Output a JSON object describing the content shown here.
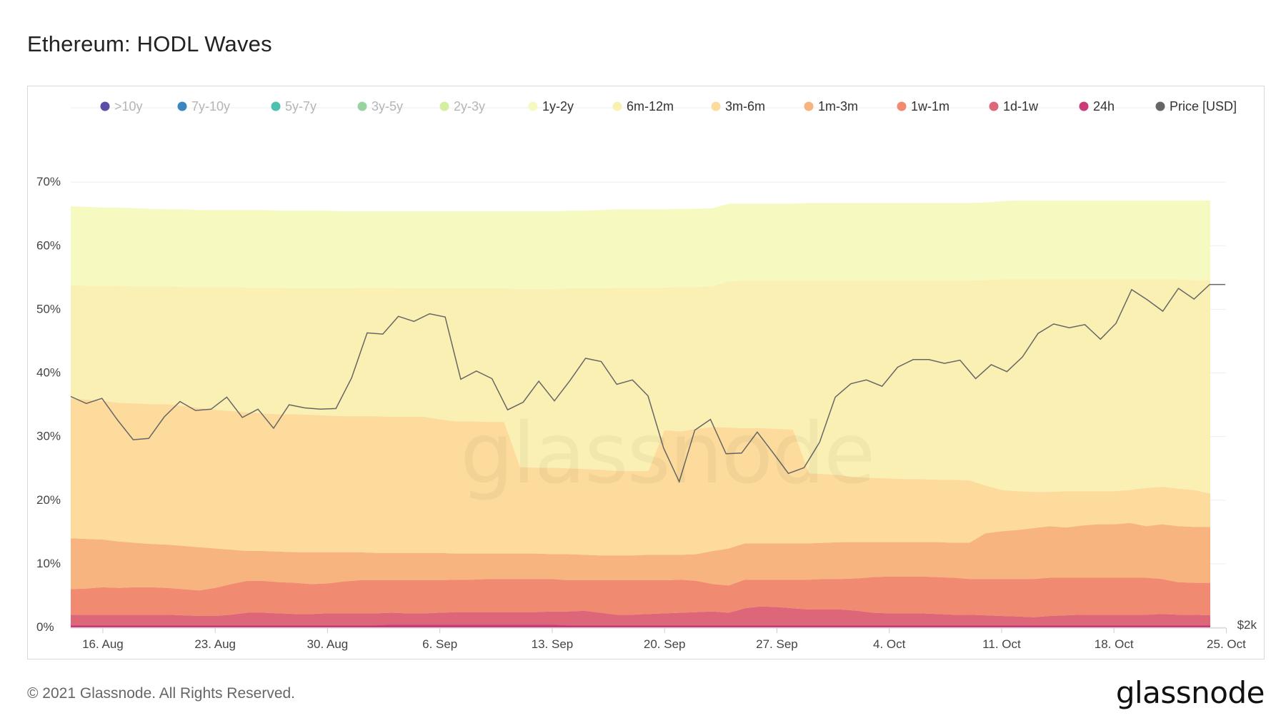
{
  "title": "Ethereum: HODL Waves",
  "footer": {
    "copyright": "© 2021 Glassnode. All Rights Reserved.",
    "logo": "glassnode",
    "watermark": "glassnode"
  },
  "colors": {
    "gt10y": "#5b4ea8",
    "y7_10": "#3a87c0",
    "y5_7": "#4dc0b0",
    "y3_5": "#97d4a0",
    "y2_3": "#d6eea0",
    "y1_2": "#f6f9c0",
    "m6_12": "#fbf0b3",
    "m3_6": "#fcdb9c",
    "m1_3": "#f8b47e",
    "w1_1m": "#f08a70",
    "d1_1w": "#dd6678",
    "h24": "#c93a78",
    "price": "#666666"
  },
  "chart_data": {
    "type": "area",
    "stacked": true,
    "title": "Ethereum: HODL Waves",
    "ylim": [
      0,
      80
    ],
    "y_ticks": [
      "0%",
      "10%",
      "20%",
      "30%",
      "40%",
      "50%",
      "60%",
      "70%"
    ],
    "right_axis_label": "$2k",
    "x_ticks": [
      "16. Aug",
      "23. Aug",
      "30. Aug",
      "6. Sep",
      "13. Sep",
      "20. Sep",
      "27. Sep",
      "4. Oct",
      "11. Oct",
      "18. Oct",
      "25. Oct"
    ],
    "legend_position": "top",
    "legend": [
      {
        "label": ">10y",
        "color_key": "gt10y",
        "active": false
      },
      {
        "label": "7y-10y",
        "color_key": "y7_10",
        "active": false
      },
      {
        "label": "5y-7y",
        "color_key": "y5_7",
        "active": false
      },
      {
        "label": "3y-5y",
        "color_key": "y3_5",
        "active": false
      },
      {
        "label": "2y-3y",
        "color_key": "y2_3",
        "active": false
      },
      {
        "label": "1y-2y",
        "color_key": "y1_2",
        "active": true
      },
      {
        "label": "6m-12m",
        "color_key": "m6_12",
        "active": true
      },
      {
        "label": "3m-6m",
        "color_key": "m3_6",
        "active": true
      },
      {
        "label": "1m-3m",
        "color_key": "m1_3",
        "active": true
      },
      {
        "label": "1w-1m",
        "color_key": "w1_1m",
        "active": true
      },
      {
        "label": "1d-1w",
        "color_key": "d1_1w",
        "active": true
      },
      {
        "label": "24h",
        "color_key": "h24",
        "active": true
      },
      {
        "label": "Price [USD]",
        "color_key": "price",
        "active": true
      }
    ],
    "x_start_tick_offset": 2,
    "series_boundaries_pct": [
      {
        "name": "24h",
        "color_key": "h24",
        "values": [
          0.3,
          0.3,
          0.3,
          0.3,
          0.3,
          0.3,
          0.3,
          0.3,
          0.3,
          0.3,
          0.3,
          0.3,
          0.3,
          0.3,
          0.3,
          0.3,
          0.3,
          0.3,
          0.3,
          0.3,
          0.4,
          0.4,
          0.4,
          0.4,
          0.4,
          0.4,
          0.4,
          0.4,
          0.4,
          0.4,
          0.4,
          0.3,
          0.3,
          0.3,
          0.3,
          0.3,
          0.3,
          0.3,
          0.3,
          0.3,
          0.3,
          0.3,
          0.3,
          0.3,
          0.3,
          0.3,
          0.3,
          0.3,
          0.3,
          0.3,
          0.3,
          0.3,
          0.3,
          0.3,
          0.3,
          0.3,
          0.3,
          0.3,
          0.3,
          0.3,
          0.3,
          0.3,
          0.3,
          0.3,
          0.3,
          0.3,
          0.3,
          0.3,
          0.3,
          0.3,
          0.3,
          0.3
        ]
      },
      {
        "name": "1d-1w",
        "color_key": "d1_1w",
        "values": [
          2.0,
          2.0,
          2.0,
          2.0,
          2.0,
          2.0,
          2.0,
          1.9,
          1.8,
          1.8,
          2.0,
          2.3,
          2.3,
          2.2,
          2.1,
          2.1,
          2.2,
          2.2,
          2.2,
          2.2,
          2.3,
          2.2,
          2.2,
          2.3,
          2.4,
          2.4,
          2.4,
          2.4,
          2.4,
          2.4,
          2.5,
          2.5,
          2.6,
          2.3,
          2.0,
          2.0,
          2.1,
          2.2,
          2.3,
          2.4,
          2.5,
          2.3,
          3.0,
          3.3,
          3.2,
          3.0,
          2.8,
          2.8,
          2.8,
          2.6,
          2.3,
          2.2,
          2.2,
          2.2,
          2.1,
          2.0,
          2.0,
          1.9,
          1.8,
          1.7,
          1.6,
          1.8,
          1.9,
          2.0,
          2.0,
          2.0,
          2.0,
          2.0,
          2.1,
          2.0,
          2.0,
          1.9
        ]
      },
      {
        "name": "1w-1m",
        "color_key": "w1_1m",
        "values": [
          6.0,
          6.1,
          6.3,
          6.2,
          6.3,
          6.3,
          6.2,
          6.0,
          5.8,
          6.2,
          6.8,
          7.3,
          7.3,
          7.1,
          7.0,
          6.8,
          6.9,
          7.2,
          7.4,
          7.4,
          7.4,
          7.4,
          7.4,
          7.4,
          7.5,
          7.5,
          7.6,
          7.6,
          7.6,
          7.6,
          7.6,
          7.4,
          7.4,
          7.4,
          7.4,
          7.4,
          7.4,
          7.4,
          7.5,
          7.3,
          6.8,
          6.6,
          7.5,
          7.5,
          7.5,
          7.5,
          7.5,
          7.6,
          7.6,
          7.7,
          7.9,
          8.0,
          8.0,
          8.0,
          7.9,
          7.8,
          7.6,
          7.6,
          7.6,
          7.6,
          7.6,
          7.8,
          7.8,
          7.8,
          7.8,
          7.8,
          7.8,
          7.8,
          7.6,
          7.1,
          7.0,
          7.0
        ]
      },
      {
        "name": "1m-3m",
        "color_key": "m1_3",
        "values": [
          14.0,
          13.9,
          13.8,
          13.5,
          13.3,
          13.1,
          13.0,
          12.8,
          12.6,
          12.4,
          12.2,
          12.0,
          12.0,
          11.9,
          11.8,
          11.8,
          11.8,
          11.8,
          11.8,
          11.7,
          11.7,
          11.7,
          11.7,
          11.7,
          11.6,
          11.6,
          11.6,
          11.6,
          11.6,
          11.6,
          11.5,
          11.5,
          11.4,
          11.3,
          11.3,
          11.3,
          11.4,
          11.4,
          11.4,
          11.5,
          12.0,
          12.4,
          13.2,
          13.2,
          13.2,
          13.2,
          13.2,
          13.3,
          13.4,
          13.4,
          13.4,
          13.4,
          13.4,
          13.4,
          13.4,
          13.3,
          13.3,
          14.8,
          15.1,
          15.3,
          15.6,
          15.9,
          15.7,
          16.0,
          16.2,
          16.2,
          16.4,
          15.9,
          16.2,
          15.9,
          15.8,
          15.8
        ]
      },
      {
        "name": "3m-6m",
        "color_key": "m3_6",
        "values": [
          36.0,
          35.8,
          35.6,
          35.3,
          35.2,
          35.1,
          35.1,
          34.8,
          34.5,
          34.2,
          34.0,
          33.8,
          33.6,
          33.5,
          33.5,
          33.4,
          33.3,
          33.2,
          33.2,
          33.2,
          33.1,
          33.1,
          33.1,
          32.7,
          32.4,
          32.4,
          32.3,
          32.3,
          25.2,
          25.1,
          25.1,
          25.0,
          24.9,
          24.8,
          24.6,
          24.6,
          24.6,
          31.0,
          30.8,
          31.2,
          31.5,
          31.4,
          31.3,
          31.3,
          31.2,
          31.1,
          24.2,
          24.1,
          23.9,
          23.6,
          23.5,
          23.4,
          23.3,
          23.3,
          23.2,
          23.2,
          23.1,
          22.3,
          21.6,
          21.4,
          21.3,
          21.3,
          21.4,
          21.4,
          21.4,
          21.4,
          21.6,
          21.9,
          22.1,
          21.8,
          21.6,
          21.0
        ]
      },
      {
        "name": "6m-12m",
        "color_key": "m6_12",
        "values": [
          53.8,
          53.7,
          53.7,
          53.7,
          53.6,
          53.6,
          53.6,
          53.5,
          53.5,
          53.5,
          53.5,
          53.4,
          53.4,
          53.4,
          53.3,
          53.3,
          53.3,
          53.3,
          53.4,
          53.4,
          53.4,
          53.3,
          53.3,
          53.3,
          53.3,
          53.3,
          53.3,
          53.3,
          53.2,
          53.2,
          53.2,
          53.3,
          53.3,
          53.3,
          53.4,
          53.4,
          53.4,
          53.4,
          53.5,
          53.5,
          53.6,
          54.4,
          54.5,
          54.5,
          54.5,
          54.5,
          54.5,
          54.5,
          54.5,
          54.5,
          54.5,
          54.5,
          54.5,
          54.5,
          54.5,
          54.5,
          54.5,
          54.6,
          54.7,
          54.7,
          54.7,
          54.7,
          54.7,
          54.7,
          54.7,
          54.7,
          54.7,
          54.7,
          54.7,
          54.7,
          54.6,
          54.6
        ]
      },
      {
        "name": "1y-2y",
        "color_key": "y1_2",
        "values": [
          66.2,
          66.1,
          66.0,
          66.0,
          65.9,
          65.8,
          65.7,
          65.7,
          65.6,
          65.6,
          65.6,
          65.6,
          65.6,
          65.5,
          65.5,
          65.5,
          65.5,
          65.4,
          65.4,
          65.4,
          65.4,
          65.4,
          65.4,
          65.4,
          65.4,
          65.4,
          65.4,
          65.4,
          65.4,
          65.4,
          65.4,
          65.5,
          65.5,
          65.6,
          65.7,
          65.7,
          65.7,
          65.7,
          65.8,
          65.8,
          65.9,
          66.6,
          66.6,
          66.6,
          66.6,
          66.6,
          66.7,
          66.7,
          66.7,
          66.7,
          66.7,
          66.7,
          66.7,
          66.7,
          66.7,
          66.7,
          66.7,
          66.8,
          67.0,
          67.1,
          67.1,
          67.1,
          67.1,
          67.1,
          67.1,
          67.1,
          67.1,
          67.1,
          67.1,
          67.1,
          67.1,
          67.1
        ]
      }
    ],
    "price_series_pct_of_axis": [
      36.3,
      35.2,
      36.0,
      32.6,
      29.5,
      29.7,
      33.1,
      35.5,
      34.1,
      34.3,
      36.2,
      33.0,
      34.3,
      31.3,
      35.0,
      34.5,
      34.3,
      34.4,
      39.2,
      46.3,
      46.1,
      48.9,
      48.1,
      49.3,
      48.8,
      39.0,
      40.3,
      39.1,
      34.2,
      35.4,
      38.7,
      35.6,
      38.8,
      42.3,
      41.8,
      38.2,
      38.9,
      36.4,
      28.2,
      22.9,
      31.0,
      32.7,
      27.3,
      27.4,
      30.7,
      27.5,
      24.2,
      25.1,
      29.1,
      36.2,
      38.3,
      38.9,
      37.9,
      40.9,
      42.1,
      42.1,
      41.5,
      42.0,
      39.1,
      41.3,
      40.2,
      42.5,
      46.2,
      47.7,
      47.1,
      47.6,
      45.3,
      47.8,
      53.1,
      51.5,
      49.7,
      53.3,
      51.6,
      53.9,
      53.9
    ]
  }
}
